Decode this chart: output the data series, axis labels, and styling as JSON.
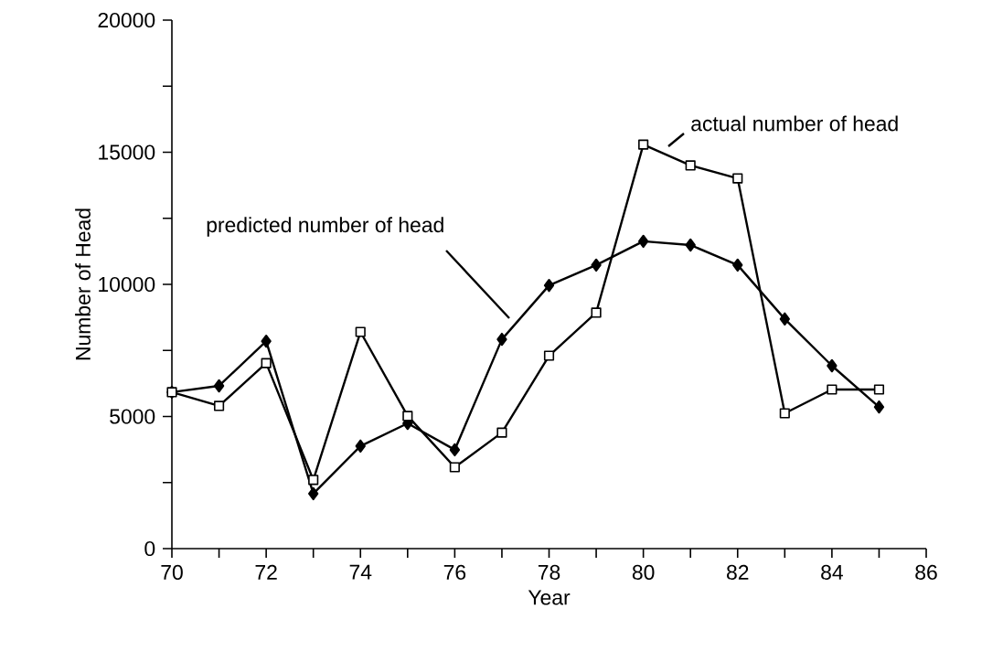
{
  "chart_data": {
    "type": "line",
    "xlabel": "Year",
    "ylabel": "Number of Head",
    "x": [
      70,
      71,
      72,
      73,
      74,
      75,
      76,
      77,
      78,
      79,
      80,
      81,
      82,
      83,
      84,
      85
    ],
    "series": [
      {
        "color": "#000000",
        "marker": "diamond",
        "values": [
          5920,
          6160,
          7850,
          2080,
          3880,
          4740,
          3740,
          7920,
          9960,
          10730,
          11630,
          11490,
          10730,
          8690,
          6920,
          5360
        ]
      },
      {
        "color": "#000000",
        "marker": "square",
        "values": [
          5920,
          5400,
          7020,
          2600,
          8200,
          5020,
          3080,
          4390,
          7300,
          8930,
          15290,
          14500,
          14010,
          5120,
          6020,
          6020
        ]
      }
    ],
    "xlim": [
      70,
      86
    ],
    "ylim": [
      0,
      20000
    ],
    "xticks": [
      70,
      {
        "value": 71,
        "label": null
      },
      72,
      {
        "value": 73,
        "label": null
      },
      74,
      {
        "value": 75,
        "label": null
      },
      76,
      {
        "value": 77,
        "label": null
      },
      78,
      {
        "value": 79,
        "label": null
      },
      80,
      {
        "value": 81,
        "label": null
      },
      82,
      {
        "value": 83,
        "label": null
      },
      84,
      {
        "value": 85,
        "label": null
      },
      86
    ],
    "yticks": [
      0,
      {
        "value": 2500,
        "label": null
      },
      5000,
      {
        "value": 7500,
        "label": null
      },
      10000,
      {
        "value": 12500,
        "label": null
      },
      15000,
      {
        "value": 17500,
        "label": null
      },
      20000
    ],
    "annotations": [
      "actual number of head",
      "predicted number of head"
    ],
    "grid": false,
    "line_style": "solid"
  }
}
